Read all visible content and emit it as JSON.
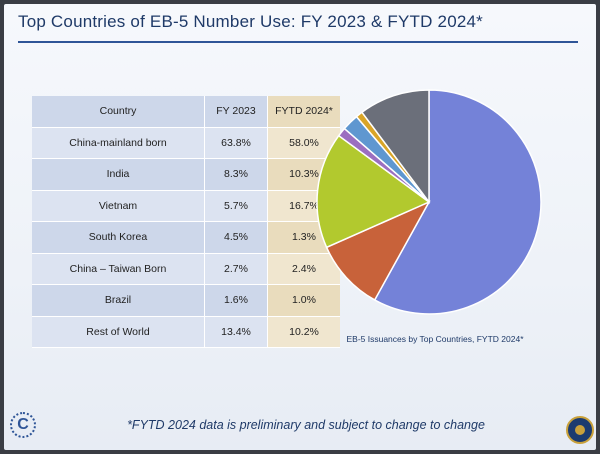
{
  "slide": {
    "title": "Top Countries of EB-5 Number Use: FY 2023 & FYTD 2024*",
    "footnote": "*FYTD 2024 data is preliminary and subject to change to change"
  },
  "table": {
    "headers": [
      "Country",
      "FY 2023",
      "FYTD 2024*"
    ],
    "rows": [
      {
        "country": "China-mainland born",
        "fy2023": "63.8%",
        "fytd2024": "58.0%"
      },
      {
        "country": "India",
        "fy2023": "8.3%",
        "fytd2024": "10.3%"
      },
      {
        "country": "Vietnam",
        "fy2023": "5.7%",
        "fytd2024": "16.7%"
      },
      {
        "country": "South Korea",
        "fy2023": "4.5%",
        "fytd2024": "1.3%"
      },
      {
        "country": "China – Taiwan Born",
        "fy2023": "2.7%",
        "fytd2024": "2.4%"
      },
      {
        "country": "Brazil",
        "fy2023": "1.6%",
        "fytd2024": "1.0%"
      },
      {
        "country": "Rest of World",
        "fy2023": "13.4%",
        "fytd2024": "10.2%"
      }
    ]
  },
  "chart_data": [
    {
      "type": "table",
      "columns": [
        "Country",
        "FY 2023",
        "FYTD 2024*"
      ],
      "rows": [
        [
          "China-mainland born",
          63.8,
          58.0
        ],
        [
          "India",
          8.3,
          10.3
        ],
        [
          "Vietnam",
          5.7,
          16.7
        ],
        [
          "South Korea",
          4.5,
          1.3
        ],
        [
          "China – Taiwan Born",
          2.7,
          2.4
        ],
        [
          "Brazil",
          1.6,
          1.0
        ],
        [
          "Rest of World",
          13.4,
          10.2
        ]
      ]
    },
    {
      "type": "pie",
      "title": "EB-5 Issuances by Top Countries, FYTD 2024*",
      "categories": [
        "China-mainland born",
        "India",
        "Vietnam",
        "South Korea",
        "China – Taiwan Born",
        "Brazil",
        "Rest of World"
      ],
      "values": [
        58.0,
        10.3,
        16.7,
        1.3,
        2.4,
        1.0,
        10.2
      ],
      "colors": [
        "#7482d8",
        "#c8623a",
        "#b2c92e",
        "#9b6fc0",
        "#5f97d0",
        "#d9a528",
        "#6b6f7a"
      ],
      "start_angle_deg": 0,
      "direction": "clockwise"
    }
  ],
  "colors": {
    "title": "#1f3a68",
    "rule": "#2f5597",
    "table_blue": "#cdd7ea",
    "table_tan": "#e9dcbd"
  },
  "icons": {
    "left_logo": "uscis-c-logo",
    "right_logo": "state-department-seal"
  }
}
